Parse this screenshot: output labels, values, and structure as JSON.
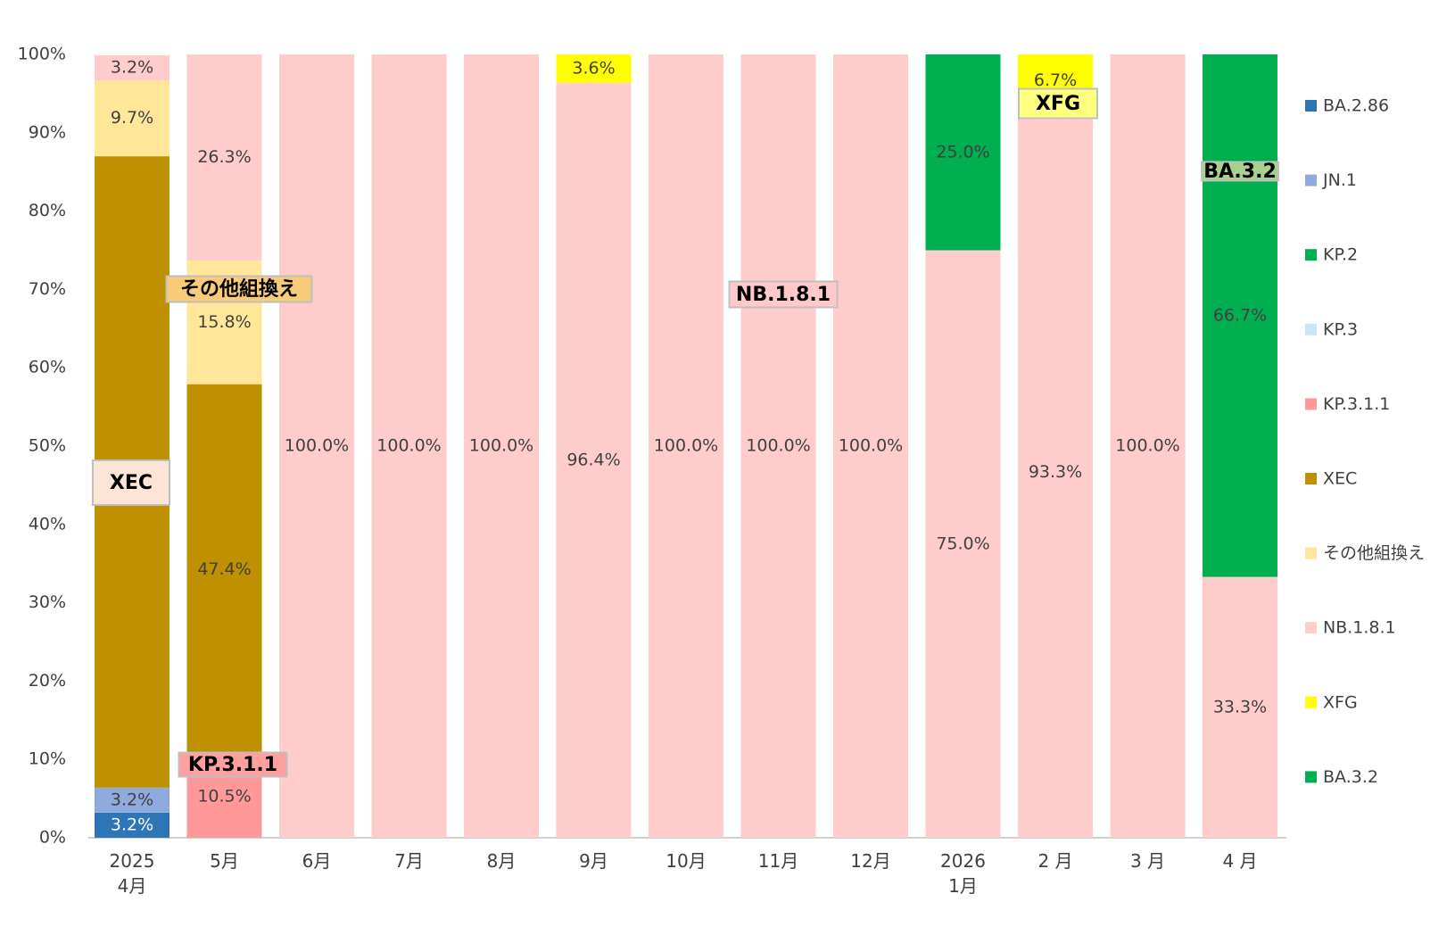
{
  "chart_data": {
    "type": "stacked_bar",
    "categories": [
      "2025\n4月",
      "5月",
      "6月",
      "7月",
      "8月",
      "9月",
      "10月",
      "11月",
      "12月",
      "2026\n1月",
      "2 月",
      "3 月",
      "4 月"
    ],
    "series": [
      {
        "name": "BA.2.86",
        "color": "#2e75b6",
        "values": [
          3.2,
          0,
          0,
          0,
          0,
          0,
          0,
          0,
          0,
          0,
          0,
          0,
          0
        ],
        "value_labels": [
          "3.2%",
          null,
          null,
          null,
          null,
          null,
          null,
          null,
          null,
          null,
          null,
          null,
          null
        ]
      },
      {
        "name": "JN.1",
        "color": "#8faadc",
        "values": [
          3.2,
          0,
          0,
          0,
          0,
          0,
          0,
          0,
          0,
          0,
          0,
          0,
          0
        ],
        "value_labels": [
          "3.2%",
          null,
          null,
          null,
          null,
          null,
          null,
          null,
          null,
          null,
          null,
          null,
          null
        ]
      },
      {
        "name": "KP.2",
        "color": "#00b050",
        "values": [
          0,
          0,
          0,
          0,
          0,
          0,
          0,
          0,
          0,
          0,
          0,
          0,
          0
        ]
      },
      {
        "name": "KP.3",
        "color": "#c9e6f7",
        "values": [
          0,
          0,
          0,
          0,
          0,
          0,
          0,
          0,
          0,
          0,
          0,
          0,
          0
        ]
      },
      {
        "name": "KP.3.1.1",
        "color": "#ff9999",
        "values": [
          0,
          10.5,
          0,
          0,
          0,
          0,
          0,
          0,
          0,
          0,
          0,
          0,
          0
        ],
        "value_labels": [
          null,
          "10.5%",
          null,
          null,
          null,
          null,
          null,
          null,
          null,
          null,
          null,
          null,
          null
        ]
      },
      {
        "name": "XEC",
        "color": "#bf9000",
        "values": [
          80.6,
          47.4,
          0,
          0,
          0,
          0,
          0,
          0,
          0,
          0,
          0,
          0,
          0
        ],
        "value_labels": [
          null,
          "47.4%",
          null,
          null,
          null,
          null,
          null,
          null,
          null,
          null,
          null,
          null,
          null
        ]
      },
      {
        "name": "その他組換え",
        "color": "#ffe699",
        "values": [
          9.7,
          15.8,
          0,
          0,
          0,
          0,
          0,
          0,
          0,
          0,
          0,
          0,
          0
        ],
        "value_labels": [
          "9.7%",
          "15.8%",
          null,
          null,
          null,
          null,
          null,
          null,
          null,
          null,
          null,
          null,
          null
        ]
      },
      {
        "name": "NB.1.8.1",
        "color": "#ffcccc",
        "values": [
          3.2,
          26.3,
          100,
          100,
          100,
          96.4,
          100,
          100,
          100,
          75,
          93.3,
          100,
          33.3
        ],
        "value_labels": [
          "3.2%",
          "26.3%",
          "100.0%",
          "100.0%",
          "100.0%",
          "96.4%",
          "100.0%",
          "100.0%",
          "100.0%",
          "75.0%",
          "93.3%",
          "100.0%",
          "33.3%"
        ]
      },
      {
        "name": "XFG",
        "color": "#ffff00",
        "values": [
          0,
          0,
          0,
          0,
          0,
          3.6,
          0,
          0,
          0,
          0,
          6.7,
          0,
          0
        ],
        "value_labels": [
          null,
          null,
          null,
          null,
          null,
          "3.6%",
          null,
          null,
          null,
          null,
          "6.7%",
          null,
          null
        ]
      },
      {
        "name": "BA.3.2",
        "color": "#00b050",
        "values": [
          0,
          0,
          0,
          0,
          0,
          0,
          0,
          0,
          0,
          25,
          0,
          0,
          66.7
        ],
        "value_labels": [
          null,
          null,
          null,
          null,
          null,
          null,
          null,
          null,
          null,
          "25.0%",
          null,
          null,
          "66.7%"
        ]
      }
    ],
    "annotations": [
      "XEC",
      "その他組換え",
      "KP.3.1.1",
      "NB.1.8.1",
      "XFG",
      "BA.3.2"
    ],
    "ylim": [
      0,
      100
    ],
    "yticks": [
      {
        "value": 0,
        "label": "0%"
      },
      {
        "value": 10,
        "label": "10%"
      },
      {
        "value": 20,
        "label": "20%"
      },
      {
        "value": 30,
        "label": "30%"
      },
      {
        "value": 40,
        "label": "40%"
      },
      {
        "value": 50,
        "label": "50%"
      },
      {
        "value": 60,
        "label": "60%"
      },
      {
        "value": 70,
        "label": "70%"
      },
      {
        "value": 80,
        "label": "80%"
      },
      {
        "value": 90,
        "label": "90%"
      },
      {
        "value": 100,
        "label": "100%"
      }
    ],
    "grid": false,
    "legend": "right"
  }
}
